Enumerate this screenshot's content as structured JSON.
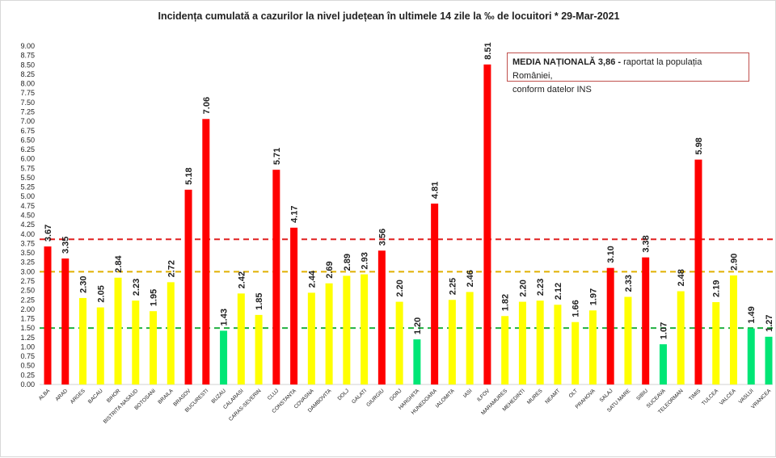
{
  "chart_data": {
    "type": "bar",
    "title": "Incidența cumulată a cazurilor la nivel județean în ultimele 14 zile la ‰ de locuitori * 29-Mar-2021",
    "xlabel": "",
    "ylabel": "",
    "ylim": [
      0,
      9
    ],
    "ytick_step": 0.25,
    "grid": false,
    "categories": [
      "ALBA",
      "ARAD",
      "ARGES",
      "BACAU",
      "BIHOR",
      "BISTRITA NASAUD",
      "BOTOSANI",
      "BRAILA",
      "BRASOV",
      "BUCURESTI",
      "BUZAU",
      "CALARASI",
      "CARAS-SEVERIN",
      "CLUJ",
      "CONSTANTA",
      "COVASNA",
      "DAMBOVITA",
      "DOLJ",
      "GALATI",
      "GIURGIU",
      "GORJ",
      "HARGHITA",
      "HUNEDOARA",
      "IALOMITA",
      "IASI",
      "ILFOV",
      "MARAMURES",
      "MEHEDINTI",
      "MURES",
      "NEAMT",
      "OLT",
      "PRAHOVA",
      "SALAJ",
      "SATU MARE",
      "SIBIU",
      "SUCEAVA",
      "TELEORMAN",
      "TIMIS",
      "TULCEA",
      "VALCEA",
      "VASLUI",
      "VRANCEA"
    ],
    "values": [
      3.67,
      3.35,
      2.3,
      2.05,
      2.84,
      2.23,
      1.95,
      2.72,
      5.18,
      7.06,
      1.43,
      2.42,
      1.85,
      5.71,
      4.17,
      2.44,
      2.69,
      2.89,
      2.93,
      3.56,
      2.2,
      1.2,
      4.81,
      2.25,
      2.46,
      8.51,
      1.82,
      2.2,
      2.23,
      2.12,
      1.66,
      1.97,
      3.1,
      2.33,
      3.38,
      1.07,
      2.48,
      5.98,
      2.19,
      2.9,
      1.49,
      1.27
    ],
    "color_rules": [
      {
        "min": 3.0,
        "color": "#ff0000"
      },
      {
        "min": 1.5,
        "color": "#ffff00"
      },
      {
        "min": 0,
        "color": "#00e676"
      }
    ],
    "reference_lines": [
      {
        "value": 3.86,
        "color": "#e02020",
        "style": "dashed"
      },
      {
        "value": 3.0,
        "color": "#e0b000",
        "style": "dashed"
      },
      {
        "value": 1.5,
        "color": "#20b040",
        "style": "dashed"
      }
    ],
    "annotation": {
      "bold": "MEDIA NAȚIONALĂ  3,86 -",
      "text": " raportat la populația României,",
      "line2": "conform datelor INS"
    }
  }
}
